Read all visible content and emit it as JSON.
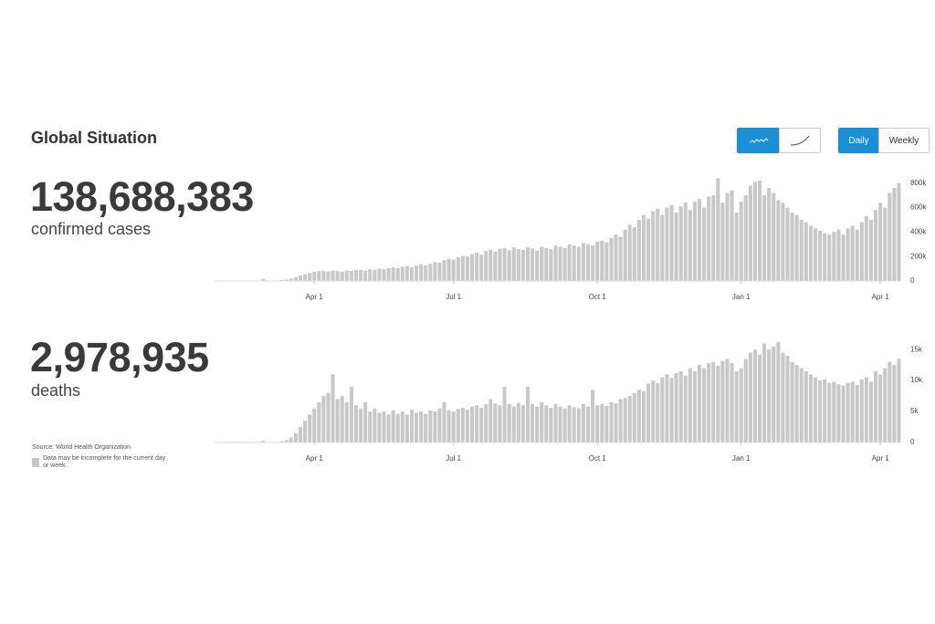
{
  "header": {
    "title": "Global Situation",
    "cases_total": "138,688,383",
    "cases_label": "confirmed cases",
    "deaths_total": "2,978,935",
    "deaths_label": "deaths",
    "source": "Source:  World Health Organization",
    "note": "Data may be incomplete for the current day or week.",
    "buttons": [
      "Daily",
      "Weekly"
    ]
  },
  "chart_data": [
    {
      "type": "bar",
      "color": "#c8c8c8",
      "categories": [
        null,
        null,
        null,
        null,
        null,
        null,
        null,
        null,
        null,
        null,
        null,
        null,
        null,
        null,
        null,
        null,
        null,
        null,
        null,
        null,
        null,
        "Apr 1",
        null,
        null,
        null,
        null,
        null,
        null,
        null,
        null,
        null,
        null,
        null,
        null,
        null,
        null,
        null,
        null,
        null,
        null,
        null,
        null,
        null,
        null,
        null,
        null,
        null,
        null,
        null,
        null,
        null,
        "Jul 1",
        null,
        null,
        null,
        null,
        null,
        null,
        null,
        null,
        null,
        null,
        null,
        null,
        null,
        null,
        null,
        null,
        null,
        null,
        null,
        null,
        null,
        null,
        null,
        null,
        null,
        null,
        null,
        null,
        null,
        null,
        "Oct 1",
        null,
        null,
        null,
        null,
        null,
        null,
        null,
        null,
        null,
        null,
        null,
        null,
        null,
        null,
        null,
        null,
        null,
        null,
        null,
        null,
        null,
        null,
        null,
        null,
        null,
        null,
        null,
        null,
        null,
        null,
        "Jan 1",
        null,
        null,
        null,
        null,
        null,
        null,
        null,
        null,
        null,
        null,
        null,
        null,
        null,
        null,
        null,
        null,
        null,
        null,
        null,
        null,
        null,
        null,
        null,
        null,
        null,
        null,
        null,
        null,
        null,
        "Apr 1",
        null,
        null,
        null,
        null
      ],
      "values": [
        2000,
        3000,
        3000,
        4000,
        3000,
        2000,
        3000,
        2000,
        2000,
        2000,
        16000,
        3000,
        2000,
        3000,
        8000,
        12000,
        20000,
        30000,
        45000,
        55000,
        65000,
        75000,
        80000,
        85000,
        78000,
        82000,
        80000,
        76000,
        85000,
        82000,
        88000,
        90000,
        85000,
        95000,
        92000,
        100000,
        96000,
        105000,
        110000,
        104000,
        115000,
        120000,
        112000,
        125000,
        135000,
        128000,
        140000,
        155000,
        150000,
        170000,
        180000,
        175000,
        195000,
        205000,
        200000,
        220000,
        230000,
        215000,
        245000,
        255000,
        240000,
        265000,
        270000,
        250000,
        275000,
        260000,
        255000,
        275000,
        265000,
        250000,
        280000,
        270000,
        260000,
        290000,
        280000,
        270000,
        300000,
        290000,
        280000,
        310000,
        300000,
        290000,
        320000,
        330000,
        315000,
        350000,
        380000,
        360000,
        420000,
        460000,
        440000,
        500000,
        540000,
        510000,
        570000,
        590000,
        540000,
        600000,
        620000,
        560000,
        610000,
        640000,
        580000,
        650000,
        670000,
        600000,
        690000,
        700000,
        840000,
        640000,
        720000,
        740000,
        560000,
        650000,
        700000,
        780000,
        810000,
        820000,
        700000,
        760000,
        720000,
        660000,
        640000,
        600000,
        560000,
        540000,
        500000,
        480000,
        450000,
        430000,
        410000,
        390000,
        380000,
        400000,
        420000,
        380000,
        430000,
        450000,
        420000,
        480000,
        530000,
        500000,
        580000,
        640000,
        600000,
        720000,
        760000,
        800000
      ],
      "ylim": [
        0,
        850000
      ],
      "yticks": [
        0,
        {
          "value": 200000,
          "label": "200k"
        },
        {
          "value": 400000,
          "label": "400k"
        },
        {
          "value": 600000,
          "label": "600k"
        },
        {
          "value": 800000,
          "label": "800k"
        }
      ]
    },
    {
      "type": "bar",
      "color": "#c8c8c8",
      "categories": [
        null,
        null,
        null,
        null,
        null,
        null,
        null,
        null,
        null,
        null,
        null,
        null,
        null,
        null,
        null,
        null,
        null,
        null,
        null,
        null,
        null,
        "Apr 1",
        null,
        null,
        null,
        null,
        null,
        null,
        null,
        null,
        null,
        null,
        null,
        null,
        null,
        null,
        null,
        null,
        null,
        null,
        null,
        null,
        null,
        null,
        null,
        null,
        null,
        null,
        null,
        null,
        null,
        "Jul 1",
        null,
        null,
        null,
        null,
        null,
        null,
        null,
        null,
        null,
        null,
        null,
        null,
        null,
        null,
        null,
        null,
        null,
        null,
        null,
        null,
        null,
        null,
        null,
        null,
        null,
        null,
        null,
        null,
        null,
        null,
        "Oct 1",
        null,
        null,
        null,
        null,
        null,
        null,
        null,
        null,
        null,
        null,
        null,
        null,
        null,
        null,
        null,
        null,
        null,
        null,
        null,
        null,
        null,
        null,
        null,
        null,
        null,
        null,
        null,
        null,
        null,
        null,
        "Jan 1",
        null,
        null,
        null,
        null,
        null,
        null,
        null,
        null,
        null,
        null,
        null,
        null,
        null,
        null,
        null,
        null,
        null,
        null,
        null,
        null,
        null,
        null,
        null,
        null,
        null,
        null,
        null,
        null,
        null,
        "Apr 1",
        null,
        null,
        null,
        null
      ],
      "values": [
        50,
        80,
        100,
        100,
        120,
        100,
        110,
        100,
        90,
        100,
        250,
        100,
        80,
        100,
        200,
        400,
        800,
        1500,
        2500,
        3500,
        4500,
        5500,
        6500,
        7500,
        8000,
        11000,
        7000,
        7500,
        6500,
        9000,
        6000,
        5500,
        6500,
        5000,
        5500,
        4800,
        5000,
        4500,
        5200,
        4600,
        5000,
        4500,
        5300,
        4800,
        5000,
        4600,
        5200,
        5000,
        5500,
        6500,
        5200,
        5000,
        5400,
        5600,
        5300,
        5800,
        6000,
        5600,
        6200,
        7000,
        6300,
        6000,
        9000,
        6200,
        5800,
        6400,
        6000,
        9000,
        6200,
        5800,
        6500,
        6000,
        5600,
        6200,
        5800,
        5500,
        6000,
        5700,
        5500,
        6200,
        5800,
        8500,
        6000,
        6200,
        5900,
        6500,
        6300,
        7000,
        7200,
        7500,
        8000,
        8500,
        8300,
        9500,
        10000,
        9600,
        10500,
        11000,
        10400,
        11200,
        11500,
        10800,
        12000,
        11500,
        12500,
        12000,
        12800,
        13000,
        12400,
        13200,
        13500,
        12800,
        11500,
        12000,
        13500,
        14500,
        15000,
        14200,
        16000,
        15000,
        15500,
        16200,
        14500,
        14000,
        13000,
        12500,
        12000,
        11500,
        11000,
        10500,
        10000,
        10200,
        9600,
        9800,
        9400,
        9200,
        9600,
        9800,
        9300,
        10200,
        10500,
        9800,
        11500,
        11000,
        12000,
        13000,
        12500,
        13500
      ],
      "ylim": [
        0,
        16500
      ],
      "yticks": [
        0,
        {
          "value": 5000,
          "label": "5k"
        },
        {
          "value": 10000,
          "label": "10k"
        },
        {
          "value": 15000,
          "label": "15k"
        }
      ]
    }
  ]
}
